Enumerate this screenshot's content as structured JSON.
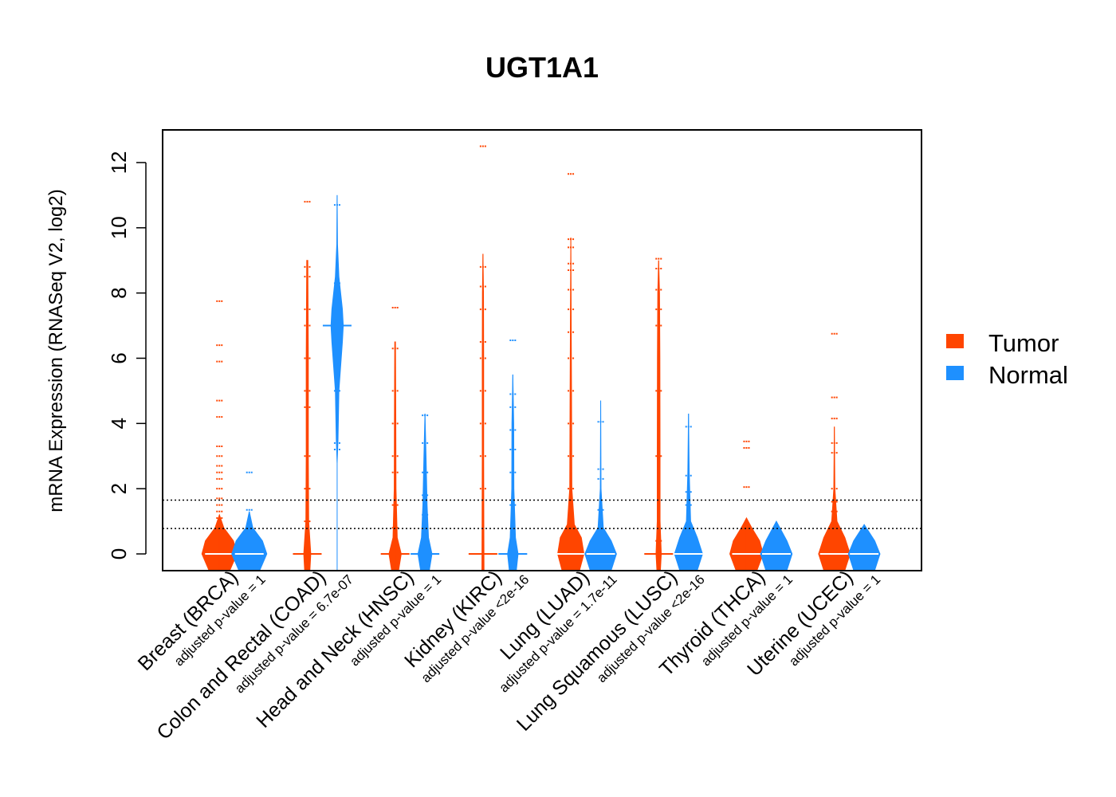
{
  "chart_data": {
    "type": "beanplot",
    "title": "UGT1A1",
    "ylabel": "mRNA Expression (RNASeq V2, log2)",
    "xlabel": "",
    "ylim": [
      -0.5,
      13
    ],
    "yticks": [
      0,
      2,
      4,
      6,
      8,
      10,
      12
    ],
    "reference_lines": [
      0.78,
      1.65
    ],
    "colors": {
      "Tumor": "#FF4500",
      "Normal": "#1E90FF"
    },
    "legend": {
      "position": "right",
      "entries": [
        "Tumor",
        "Normal"
      ]
    },
    "groups": [
      {
        "label": "Breast (BRCA)",
        "pvalue": "adjusted p-value = 1",
        "tumor": {
          "mean": 0,
          "max": 1.2,
          "density": [
            [
              -0.5,
              0.6
            ],
            [
              0,
              1
            ],
            [
              0.4,
              0.8
            ],
            [
              0.8,
              0.25
            ],
            [
              1.2,
              0
            ]
          ],
          "points": [
            7.75,
            6.4,
            5.9,
            4.7,
            4.2,
            3.3,
            3.0,
            2.7,
            2.5,
            2.3,
            2.0,
            1.7,
            1.5,
            1.3,
            1.1
          ]
        },
        "normal": {
          "mean": 0,
          "max": 1.3,
          "density": [
            [
              -0.5,
              0.6
            ],
            [
              0,
              1
            ],
            [
              0.4,
              0.75
            ],
            [
              0.8,
              0.2
            ],
            [
              1.3,
              0
            ]
          ],
          "points": [
            2.5,
            1.35
          ]
        }
      },
      {
        "label": "Colon and Rectal (COAD)",
        "pvalue": "adjusted p-value = 6.7e-07",
        "tumor": {
          "mean": 0,
          "max": 9.0,
          "density": [
            [
              -0.5,
              0.15
            ],
            [
              0,
              0.2
            ],
            [
              1,
              0.08
            ],
            [
              3,
              0.06
            ],
            [
              6,
              0.06
            ],
            [
              9,
              0.03
            ]
          ],
          "points": [
            10.8,
            8.8,
            8.5,
            7.5,
            7.0,
            6.0,
            5.0,
            4.5,
            3.0,
            2.0,
            1.0
          ]
        },
        "normal": {
          "mean": 7,
          "max": 11.0,
          "density": [
            [
              2.8,
              0
            ],
            [
              3.5,
              0.05
            ],
            [
              5,
              0.1
            ],
            [
              6.5,
              0.3
            ],
            [
              7,
              0.35
            ],
            [
              7.5,
              0.3
            ],
            [
              8.5,
              0.1
            ],
            [
              9.5,
              0.02
            ],
            [
              11,
              0
            ]
          ],
          "points": [
            10.7,
            8.3,
            6.0,
            5.8,
            5.0,
            3.4,
            3.2
          ]
        }
      },
      {
        "label": "Head and Neck (HNSC)",
        "pvalue": "adjusted p-value = 1",
        "tumor": {
          "mean": 0,
          "max": 6.5,
          "density": [
            [
              -0.5,
              0.2
            ],
            [
              0,
              0.35
            ],
            [
              0.5,
              0.12
            ],
            [
              2,
              0.05
            ],
            [
              4,
              0.04
            ],
            [
              6.5,
              0.02
            ]
          ],
          "points": [
            7.55,
            6.3,
            5.0,
            4.0,
            3.0,
            2.5,
            1.5,
            0.8
          ]
        },
        "normal": {
          "mean": 0,
          "max": 4.3,
          "density": [
            [
              -0.5,
              0.25
            ],
            [
              0,
              0.4
            ],
            [
              0.5,
              0.2
            ],
            [
              1.5,
              0.12
            ],
            [
              3,
              0.06
            ],
            [
              4.3,
              0
            ]
          ],
          "points": [
            4.25,
            3.4,
            2.5,
            1.8,
            1.2
          ]
        }
      },
      {
        "label": "Kidney (KIRC)",
        "pvalue": "adjusted p-value <2e-16",
        "tumor": {
          "mean": 0,
          "max": 9.2,
          "density": [
            [
              -0.5,
              0.06
            ],
            [
              1,
              0.05
            ],
            [
              3,
              0.04
            ],
            [
              6,
              0.04
            ],
            [
              8,
              0.03
            ],
            [
              9.2,
              0
            ]
          ],
          "points": [
            12.5,
            8.8,
            8.2,
            7.5,
            6.5,
            6.0,
            5.0,
            4.0,
            3.0,
            2.0
          ]
        },
        "normal": {
          "mean": 0,
          "max": 5.5,
          "density": [
            [
              -0.5,
              0.2
            ],
            [
              0,
              0.3
            ],
            [
              0.5,
              0.15
            ],
            [
              2,
              0.06
            ],
            [
              4,
              0.05
            ],
            [
              5.5,
              0
            ]
          ],
          "points": [
            6.55,
            4.9,
            4.5,
            3.8,
            3.2,
            2.5,
            1.5
          ]
        }
      },
      {
        "label": "Lung (LUAD)",
        "pvalue": "adjusted p-value = 1.7e-11",
        "tumor": {
          "mean": 0,
          "max": 9.7,
          "density": [
            [
              -0.5,
              0.5
            ],
            [
              0,
              0.75
            ],
            [
              0.5,
              0.6
            ],
            [
              0.9,
              0.2
            ],
            [
              2,
              0.06
            ],
            [
              5,
              0.04
            ],
            [
              9.7,
              0
            ]
          ],
          "points": [
            11.65,
            9.65,
            9.4,
            8.9,
            8.7,
            8.1,
            7.5,
            6.8,
            6.0,
            5.0,
            4.0,
            3.0,
            2.0
          ]
        },
        "normal": {
          "mean": 0,
          "max": 4.7,
          "density": [
            [
              -0.5,
              0.6
            ],
            [
              0,
              0.9
            ],
            [
              0.4,
              0.6
            ],
            [
              0.8,
              0.15
            ],
            [
              2,
              0.02
            ],
            [
              4.7,
              0
            ]
          ],
          "points": [
            4.05,
            2.6,
            2.3,
            1.35
          ]
        }
      },
      {
        "label": "Lung Squamous (LUSC)",
        "pvalue": "adjusted p-value <2e-16",
        "tumor": {
          "mean": 0,
          "max": 9.0,
          "density": [
            [
              -0.5,
              0.1
            ],
            [
              0,
              0.15
            ],
            [
              1,
              0.08
            ],
            [
              3,
              0.08
            ],
            [
              6,
              0.07
            ],
            [
              8,
              0.05
            ],
            [
              9,
              0
            ]
          ],
          "points": [
            9.05,
            8.75,
            8.1,
            7.5,
            7.0,
            5.0,
            3.0,
            0.4
          ]
        },
        "normal": {
          "mean": 0,
          "max": 4.3,
          "density": [
            [
              -0.5,
              0.5
            ],
            [
              0,
              0.8
            ],
            [
              0.5,
              0.5
            ],
            [
              1,
              0.12
            ],
            [
              2.5,
              0.04
            ],
            [
              4.3,
              0
            ]
          ],
          "points": [
            3.9,
            2.4,
            1.9,
            1.5
          ]
        }
      },
      {
        "label": "Thyroid (THCA)",
        "pvalue": "adjusted p-value = 1",
        "tumor": {
          "mean": 0,
          "max": 1.1,
          "density": [
            [
              -0.5,
              0.6
            ],
            [
              0,
              0.95
            ],
            [
              0.4,
              0.75
            ],
            [
              0.8,
              0.3
            ],
            [
              1.1,
              0
            ]
          ],
          "points": [
            3.45,
            3.25,
            2.05
          ]
        },
        "normal": {
          "mean": 0,
          "max": 1.0,
          "density": [
            [
              -0.5,
              0.6
            ],
            [
              0,
              0.9
            ],
            [
              0.4,
              0.6
            ],
            [
              0.8,
              0.2
            ],
            [
              1.0,
              0
            ]
          ],
          "points": []
        }
      },
      {
        "label": "Uterine (UCEC)",
        "pvalue": "adjusted p-value = 1",
        "tumor": {
          "mean": 0,
          "max": 3.9,
          "density": [
            [
              -0.5,
              0.6
            ],
            [
              0,
              0.9
            ],
            [
              0.5,
              0.6
            ],
            [
              1,
              0.15
            ],
            [
              2,
              0.03
            ],
            [
              3.9,
              0
            ]
          ],
          "points": [
            6.75,
            4.8,
            4.15,
            3.4,
            3.1,
            2.0,
            1.6,
            1.3
          ]
        },
        "normal": {
          "mean": 0,
          "max": 0.9,
          "density": [
            [
              -0.5,
              0.6
            ],
            [
              0,
              0.9
            ],
            [
              0.4,
              0.6
            ],
            [
              0.9,
              0
            ]
          ],
          "points": []
        }
      }
    ]
  }
}
